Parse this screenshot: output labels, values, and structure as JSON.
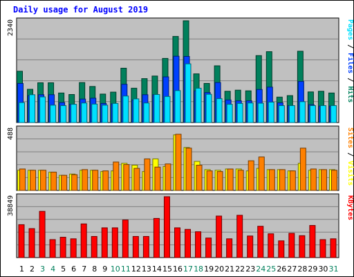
{
  "chart_data": {
    "type": "bar",
    "title": "Daily usage for August 2019",
    "categories": [
      "1",
      "2",
      "3",
      "4",
      "5",
      "6",
      "7",
      "8",
      "9",
      "10",
      "11",
      "12",
      "13",
      "14",
      "15",
      "16",
      "17",
      "18",
      "19",
      "20",
      "21",
      "22",
      "23",
      "24",
      "25",
      "26",
      "27",
      "28",
      "29",
      "30",
      "31"
    ],
    "weekend_days": [
      "3",
      "4",
      "10",
      "11",
      "17",
      "18",
      "24",
      "25",
      "31"
    ],
    "colors": {
      "hits": "#00805c",
      "files": "#0040ff",
      "pages": "#00e0ff",
      "visits": "#ffff00",
      "sites": "#ff8000",
      "kbytes": "#ff0000",
      "weekday_label": "#000000",
      "weekend_label": "#00805c",
      "background": "#c0c0c0",
      "grid": "#808080"
    },
    "panels": [
      {
        "id": "hits-files-pages",
        "ymax": 2340,
        "ymax_label": "2340",
        "side_label_parts": [
          {
            "text": "Pages",
            "color": "#00e0ff"
          },
          {
            "text": " / ",
            "color": "#000000"
          },
          {
            "text": "Files",
            "color": "#0040ff"
          },
          {
            "text": " / ",
            "color": "#000000"
          },
          {
            "text": "Hits",
            "color": "#00805c"
          }
        ],
        "series": [
          {
            "key": "hits",
            "values": [
              1180,
              765,
              915,
              915,
              680,
              645,
              920,
              830,
              655,
              700,
              1250,
              790,
              1010,
              1070,
              1475,
              1980,
              2340,
              1120,
              900,
              1305,
              720,
              745,
              730,
              1540,
              1630,
              585,
              620,
              1640,
              705,
              720,
              680
            ]
          },
          {
            "key": "files",
            "values": [
              900,
              620,
              640,
              640,
              460,
              420,
              540,
              560,
              440,
              430,
              880,
              520,
              640,
              640,
              1050,
              1525,
              1520,
              730,
              690,
              920,
              520,
              500,
              500,
              760,
              815,
              455,
              390,
              945,
              410,
              380,
              380
            ]
          },
          {
            "key": "pages",
            "values": [
              460,
              640,
              590,
              400,
              390,
              420,
              450,
              425,
              400,
              440,
              610,
              545,
              450,
              645,
              600,
              735,
              1350,
              790,
              650,
              550,
              420,
              440,
              450,
              445,
              470,
              390,
              390,
              480,
              390,
              390,
              390
            ]
          }
        ]
      },
      {
        "id": "visits-sites",
        "ymax": 488,
        "ymax_label": "488",
        "side_label_parts": [
          {
            "text": "Sites",
            "color": "#ff8000"
          },
          {
            "text": " / ",
            "color": "#000000"
          },
          {
            "text": "Visits",
            "color": "#ffff00"
          }
        ],
        "series": [
          {
            "key": "visits",
            "values": [
              160,
              160,
              160,
              145,
              120,
              130,
              160,
              160,
              150,
              155,
              215,
              200,
              150,
              250,
              190,
              440,
              340,
              230,
              165,
              160,
              170,
              170,
              155,
              175,
              165,
              165,
              155,
              215,
              160,
              165,
              165
            ]
          },
          {
            "key": "sites",
            "values": [
              170,
              160,
              160,
              145,
              120,
              125,
              165,
              160,
              155,
              225,
              205,
              175,
              250,
              185,
              210,
              445,
              335,
              200,
              155,
              150,
              170,
              160,
              235,
              265,
              165,
              165,
              155,
              335,
              170,
              165,
              160
            ]
          }
        ]
      },
      {
        "id": "kbytes",
        "ymax": 38849,
        "ymax_label": "38849",
        "side_label_parts": [
          {
            "text": "KBytes",
            "color": "#ff0000"
          }
        ],
        "series": [
          {
            "key": "kbytes",
            "values": [
              21000,
              18500,
              29500,
              11500,
              13000,
              12000,
              21500,
              13500,
              19000,
              19000,
              24000,
              13500,
              13500,
              25000,
              38849,
              19000,
              18000,
              16500,
              12500,
              26500,
              12000,
              27000,
              13800,
              20000,
              15200,
              10700,
              15500,
              14000,
              20500,
              11500,
              12000
            ]
          }
        ]
      }
    ]
  }
}
